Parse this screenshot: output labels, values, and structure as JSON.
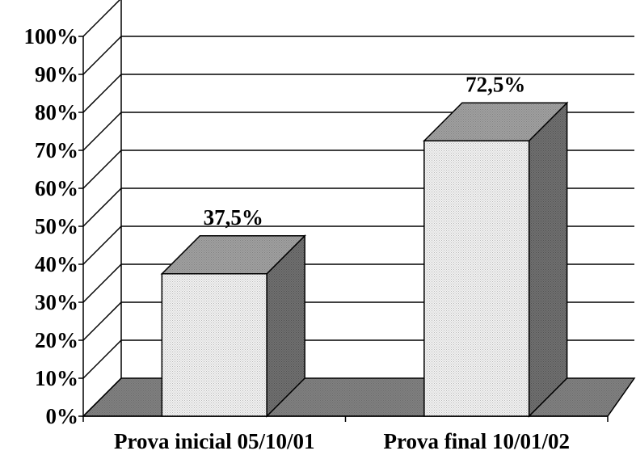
{
  "chart_data": {
    "type": "bar",
    "three_d": true,
    "categories": [
      "Prova inicial 05/10/01",
      "Prova final 10/01/02"
    ],
    "values": [
      37.5,
      72.5
    ],
    "data_labels": [
      "37,5%",
      "72,5%"
    ],
    "ylim": [
      0,
      100
    ],
    "yticks": [
      0,
      10,
      20,
      30,
      40,
      50,
      60,
      70,
      80,
      90,
      100
    ],
    "ytick_labels": [
      "0%",
      "10%",
      "20%",
      "30%",
      "40%",
      "50%",
      "60%",
      "70%",
      "80%",
      "90%",
      "100%"
    ],
    "grid": true,
    "legend": "none",
    "colors": {
      "bar_front": "#e8e8e8",
      "bar_top": "#9a9a9a",
      "bar_side": "#6a6a6a",
      "floor": "#808080",
      "grid": "#000000"
    }
  }
}
